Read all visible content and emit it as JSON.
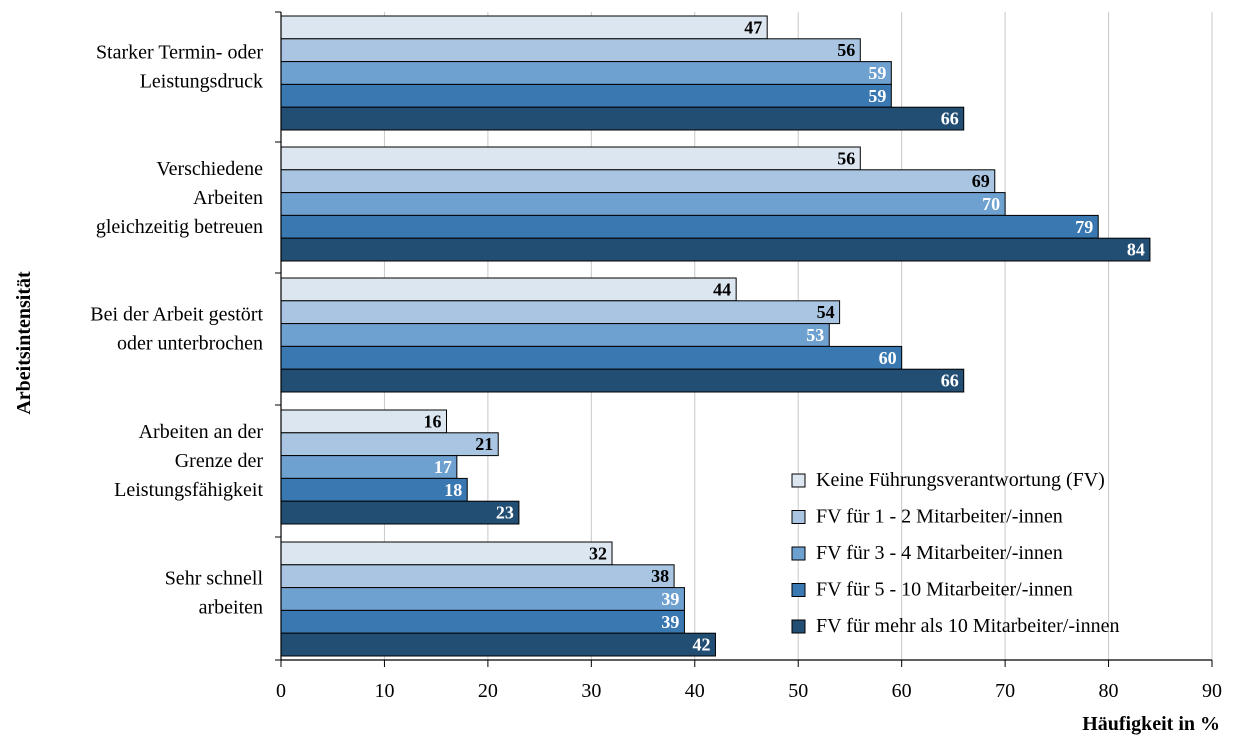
{
  "chart_data": {
    "type": "bar",
    "orientation": "horizontal",
    "title": "",
    "xlabel": "Häufigkeit in %",
    "ylabel": "Arbeitsintensität",
    "xlim": [
      0,
      90
    ],
    "xticks": [
      "0",
      "10",
      "20",
      "30",
      "40",
      "50",
      "60",
      "70",
      "80",
      "90"
    ],
    "grid": "vertical",
    "legend_position": "bottom-right, inside plot",
    "categories": [
      [
        "Starker Termin- oder",
        "Leistungsdruck"
      ],
      [
        "Verschiedene",
        "Arbeiten",
        "gleichzeitig betreuen"
      ],
      [
        "Bei der Arbeit gestört",
        "oder unterbrochen"
      ],
      [
        "Arbeiten an der",
        "Grenze der",
        "Leistungsfähigkeit"
      ],
      [
        "Sehr schnell",
        "arbeiten"
      ]
    ],
    "series": [
      {
        "name": "Keine Führungsverantwortung (FV)",
        "color": "#dce6f1",
        "label_color": "#000000",
        "values": [
          47,
          56,
          44,
          16,
          32
        ]
      },
      {
        "name": "FV für 1 - 2 Mitarbeiter/-innen",
        "color": "#a9c5e1",
        "label_color": "#000000",
        "values": [
          56,
          69,
          54,
          21,
          38
        ]
      },
      {
        "name": "FV für 3 - 4 Mitarbeiter/-innen",
        "color": "#6fa1d0",
        "label_color": "#ffffff",
        "values": [
          59,
          70,
          53,
          17,
          39
        ]
      },
      {
        "name": "FV für 5 - 10 Mitarbeiter/-innen",
        "color": "#3a78b2",
        "label_color": "#ffffff",
        "values": [
          59,
          79,
          60,
          18,
          39
        ]
      },
      {
        "name": "FV für mehr als 10 Mitarbeiter/-innen",
        "color": "#234e74",
        "label_color": "#ffffff",
        "values": [
          66,
          84,
          66,
          23,
          42
        ]
      }
    ]
  }
}
